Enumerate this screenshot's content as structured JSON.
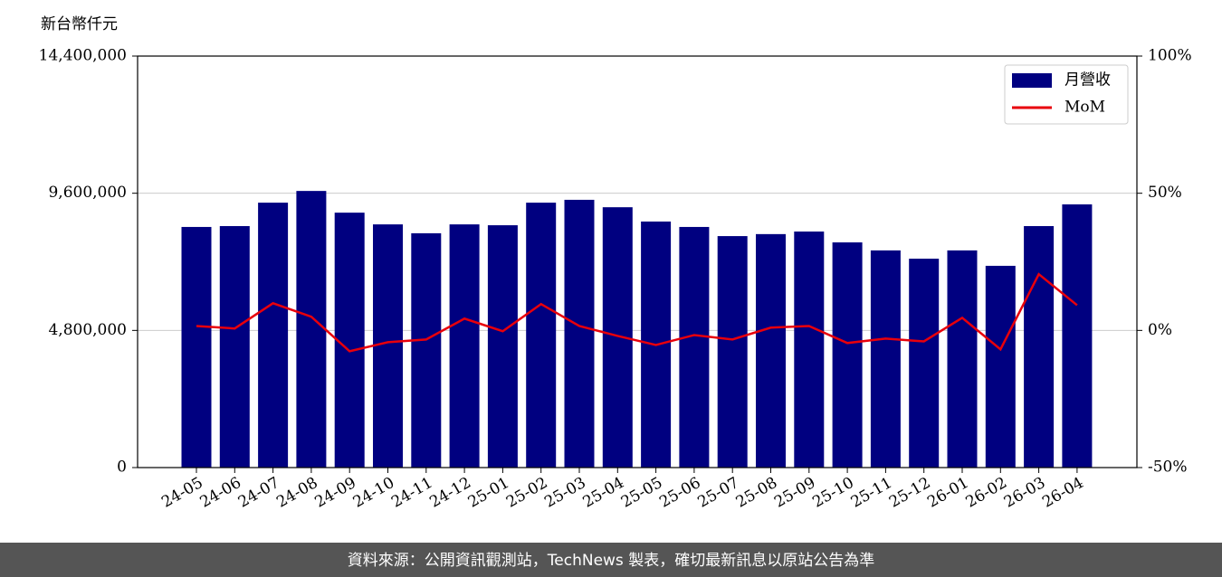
{
  "chart_data": {
    "type": "bar_line",
    "y_label": "新台幣仟元",
    "categories": [
      "24-05",
      "24-06",
      "24-07",
      "24-08",
      "24-09",
      "24-10",
      "24-11",
      "24-12",
      "25-01",
      "25-02",
      "25-03",
      "25-04",
      "25-05",
      "25-06",
      "25-07",
      "25-08",
      "25-09",
      "25-10",
      "25-11",
      "25-12",
      "26-01",
      "26-02",
      "26-03",
      "26-04"
    ],
    "series": [
      {
        "name": "月營收",
        "type": "bar",
        "color": "#000080",
        "values": [
          8420000,
          8450000,
          9270000,
          9680000,
          8920000,
          8510000,
          8200000,
          8510000,
          8480000,
          9270000,
          9370000,
          9110000,
          8610000,
          8420000,
          8100000,
          8170000,
          8260000,
          7880000,
          7600000,
          7310000,
          7600000,
          7060000,
          8450000,
          9210000
        ]
      },
      {
        "name": "MoM",
        "type": "line",
        "axis": "y2",
        "color": "#e8000b",
        "values": [
          1.6,
          0.7,
          9.9,
          5.0,
          -7.6,
          -4.3,
          -3.3,
          4.3,
          -0.3,
          9.6,
          1.6,
          -2.0,
          -5.3,
          -1.7,
          -3.3,
          1.0,
          1.6,
          -4.6,
          -3.0,
          -4.0,
          4.6,
          -6.9,
          20.5,
          9.2
        ]
      }
    ],
    "ylim": [
      0,
      14400000
    ],
    "yticks": [
      0,
      {
        "value": 4800000,
        "label": "4,800,000"
      },
      {
        "value": 9600000,
        "label": "9,600,000"
      },
      {
        "value": 14400000,
        "label": "14,400,000"
      }
    ],
    "y2lim": [
      -50,
      100
    ],
    "y2ticks": [
      {
        "value": -50,
        "label": "-50%"
      },
      {
        "value": 0,
        "label": "0%"
      },
      {
        "value": 50,
        "label": "50%"
      },
      {
        "value": 100,
        "label": "100%"
      }
    ],
    "grid": true,
    "legend": "upper right",
    "footer": "資料來源：公開資訊觀測站，TechNews 製表，確切最新訊息以原站公告為準"
  }
}
